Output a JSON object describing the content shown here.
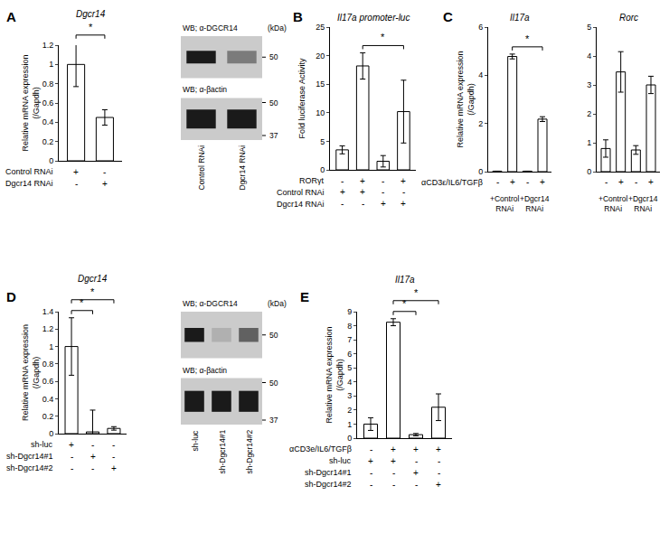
{
  "chart_data": [
    {
      "panel_label": "A",
      "type": "bar",
      "title": "Dgcr14",
      "y_label": "Relative mRNA expression (/Gapdh)",
      "values": [
        1.0,
        0.45
      ],
      "errors": [
        0.23,
        0.08
      ],
      "color": "#ffffff",
      "ylim": [
        0,
        1.2
      ],
      "yticks": [
        0,
        0.2,
        0.4,
        0.6,
        0.8,
        1,
        1.2
      ],
      "grid": false,
      "tick_labels": "y",
      "conditions": [
        {
          "label": "Control RNAi",
          "marks": [
            "+",
            "-"
          ]
        },
        {
          "label": "Dgcr14 RNAi",
          "marks": [
            "-",
            "+"
          ]
        }
      ],
      "significance": [
        {
          "from": 0,
          "to": 1,
          "label": "*"
        }
      ],
      "blot": {
        "lanes": [
          "Control RNAi",
          "Dgcr14 RNAi"
        ],
        "rows": [
          {
            "label": "WB; α-DGCR14",
            "unit": "(kDa)",
            "markers": [
              50
            ],
            "bands": [
              1,
              0.45
            ]
          },
          {
            "label": "WB; α-βactin",
            "markers": [
              50,
              37
            ],
            "bands": [
              1,
              1
            ]
          }
        ]
      }
    },
    {
      "panel_label": "B",
      "type": "bar",
      "title": "Il17a promoter-luc",
      "y_label": "Fold luciferase Activity",
      "values": [
        3.5,
        18.2,
        1.5,
        10.2
      ],
      "errors": [
        0.7,
        2.3,
        1.0,
        5.5
      ],
      "color": "#ffffff",
      "ylim": [
        0,
        25
      ],
      "yticks": [
        0,
        5,
        10,
        15,
        20,
        25
      ],
      "grid": false,
      "tick_labels": "y",
      "conditions": [
        {
          "label": "RORγt",
          "marks": [
            "-",
            "+",
            "-",
            "+"
          ]
        },
        {
          "label": "Control RNAi",
          "marks": [
            "+",
            "+",
            "-",
            "-"
          ]
        },
        {
          "label": "Dgcr14 RNAi",
          "marks": [
            "-",
            "-",
            "+",
            "+"
          ]
        }
      ],
      "significance": [
        {
          "from": 1,
          "to": 3,
          "label": "*"
        }
      ]
    },
    {
      "panel_label": "C",
      "type": "bar",
      "title": "Il17a",
      "y_label": "Relative mRNA expression (/Gapdh)",
      "values": [
        0.02,
        4.78,
        0.02,
        2.18
      ],
      "errors": [
        0,
        0.1,
        0,
        0.1
      ],
      "color": "#ffffff",
      "ylim": [
        0,
        6
      ],
      "yticks": [
        0,
        2,
        4,
        6
      ],
      "grid": false,
      "tick_labels": "y",
      "conditions": [
        {
          "label": "αCD3ε/IL6/TGFβ",
          "marks": [
            "-",
            "+",
            "-",
            "+"
          ]
        }
      ],
      "groups": [
        {
          "label": "+Control RNAi",
          "span": [
            0,
            1
          ]
        },
        {
          "label": "+Dgcr14 RNAi",
          "span": [
            2,
            3
          ]
        }
      ],
      "significance": [
        {
          "from": 1,
          "to": 3,
          "label": "*"
        }
      ]
    },
    {
      "type": "bar",
      "title": "Rorc",
      "values": [
        0.8,
        3.45,
        0.75,
        3.0
      ],
      "errors": [
        0.3,
        0.7,
        0.15,
        0.3
      ],
      "color": "#ffffff",
      "ylim": [
        0,
        5
      ],
      "yticks": [
        0,
        1,
        2,
        3,
        4,
        5
      ],
      "grid": false,
      "tick_labels": "y",
      "conditions": [
        {
          "marks": [
            "-",
            "+",
            "-",
            "+"
          ]
        }
      ],
      "groups": [
        {
          "label": "+Control RNAi",
          "span": [
            0,
            1
          ]
        },
        {
          "label": "+Dgcr14 RNAi",
          "span": [
            2,
            3
          ]
        }
      ]
    },
    {
      "panel_label": "D",
      "type": "bar",
      "title": "Dgcr14",
      "y_label": "Relative mRNA expression (/Gapdh)",
      "values": [
        1.0,
        0.02,
        0.06
      ],
      "errors": [
        0.33,
        0.25,
        0.02
      ],
      "color": "#ffffff",
      "ylim": [
        0,
        1.4
      ],
      "yticks": [
        0,
        0.2,
        0.4,
        0.6,
        0.8,
        1,
        1.2,
        1.4
      ],
      "grid": false,
      "tick_labels": "y",
      "conditions": [
        {
          "label": "sh-luc",
          "marks": [
            "+",
            "-",
            "-"
          ]
        },
        {
          "label": "sh-Dgcr14#1",
          "marks": [
            "-",
            "+",
            "-"
          ]
        },
        {
          "label": "sh-Dgcr14#2",
          "marks": [
            "-",
            "-",
            "+"
          ]
        }
      ],
      "significance": [
        {
          "from": 0,
          "to": 1,
          "label": "*"
        },
        {
          "from": 0,
          "to": 2,
          "label": "*"
        }
      ],
      "blot": {
        "lanes": [
          "sh-luc",
          "sh-Dgcr14#1",
          "sh-Dgcr14#2"
        ],
        "rows": [
          {
            "label": "WB; α-DGCR14",
            "unit": "(kDa)",
            "markers": [
              50
            ],
            "bands": [
              1,
              0.15,
              0.6
            ]
          },
          {
            "label": "WB; α-βactin",
            "markers": [
              50,
              37
            ],
            "bands": [
              1,
              1,
              1
            ]
          }
        ]
      }
    },
    {
      "panel_label": "E",
      "type": "bar",
      "title": "Il17a",
      "y_label": "Relative mRNA expression (/Gapdh)",
      "values": [
        1.0,
        8.25,
        0.25,
        2.2
      ],
      "errors": [
        0.45,
        0.25,
        0.08,
        0.95
      ],
      "color": "#ffffff",
      "ylim": [
        0,
        9
      ],
      "yticks": [
        0,
        1,
        2,
        3,
        4,
        5,
        6,
        7,
        8,
        9
      ],
      "grid": false,
      "tick_labels": "y",
      "conditions": [
        {
          "label": "αCD3e/IL6/TGFβ",
          "marks": [
            "-",
            "+",
            "+",
            "+"
          ]
        },
        {
          "label": "sh-luc",
          "marks": [
            "+",
            "+",
            "-",
            "-"
          ]
        },
        {
          "label": "sh-Dgcr14#1",
          "marks": [
            "-",
            "-",
            "+",
            "-"
          ]
        },
        {
          "label": "sh-Dgcr14#2",
          "marks": [
            "-",
            "-",
            "-",
            "+"
          ]
        }
      ],
      "significance": [
        {
          "from": 1,
          "to": 2,
          "label": "*"
        },
        {
          "from": 1,
          "to": 3,
          "label": "*"
        }
      ]
    }
  ]
}
